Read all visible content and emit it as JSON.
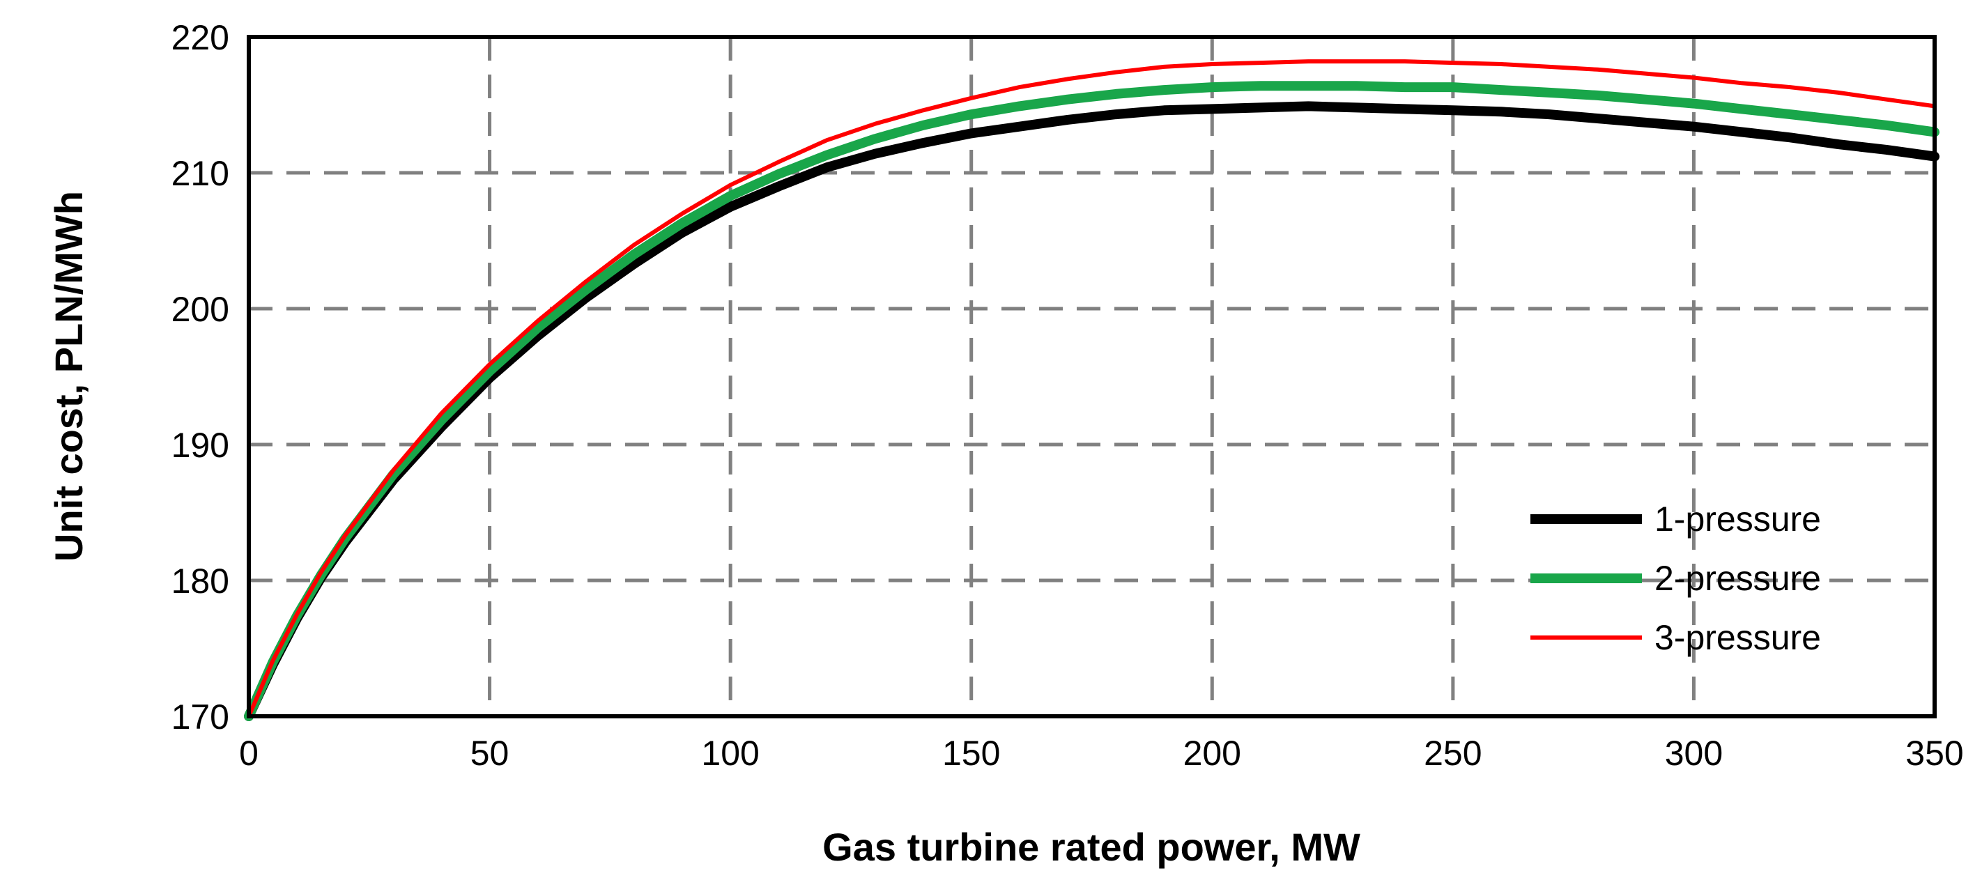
{
  "chart_data": {
    "type": "line",
    "xlabel": "Gas turbine rated power, MW",
    "ylabel": "Unit cost, PLN/MWh",
    "xlim": [
      0,
      350
    ],
    "ylim": [
      170,
      220
    ],
    "x_ticks": [
      "0",
      "50",
      "100",
      "150",
      "200",
      "250",
      "300",
      "350"
    ],
    "y_ticks": [
      "170",
      "180",
      "190",
      "200",
      "210",
      "220"
    ],
    "grid": true,
    "legend_position": "bottom-right",
    "x": [
      0,
      5,
      10,
      15,
      20,
      30,
      40,
      50,
      60,
      70,
      80,
      90,
      100,
      110,
      120,
      130,
      140,
      150,
      160,
      170,
      180,
      190,
      200,
      210,
      220,
      230,
      240,
      250,
      260,
      270,
      280,
      290,
      300,
      310,
      320,
      330,
      340,
      350
    ],
    "series": [
      {
        "name": "1-pressure",
        "color": "#000000",
        "values": [
          170.0,
          173.8,
          177.2,
          180.2,
          182.8,
          187.4,
          191.3,
          194.9,
          198.0,
          200.8,
          203.3,
          205.6,
          207.5,
          209.0,
          210.4,
          211.4,
          212.2,
          212.9,
          213.4,
          213.9,
          214.3,
          214.6,
          214.7,
          214.8,
          214.9,
          214.8,
          214.7,
          214.6,
          214.5,
          214.3,
          214.0,
          213.7,
          213.4,
          213.0,
          212.6,
          212.1,
          211.7,
          211.2
        ]
      },
      {
        "name": "2-pressure",
        "color": "#19a64a",
        "values": [
          170.0,
          174.0,
          177.4,
          180.4,
          183.1,
          187.8,
          191.8,
          195.4,
          198.6,
          201.4,
          204.0,
          206.3,
          208.3,
          209.9,
          211.3,
          212.5,
          213.5,
          214.3,
          214.9,
          215.4,
          215.8,
          216.1,
          216.3,
          216.4,
          216.4,
          216.4,
          216.3,
          216.3,
          216.1,
          215.9,
          215.7,
          215.4,
          215.1,
          214.7,
          214.3,
          213.9,
          213.5,
          213.0
        ]
      },
      {
        "name": "3-pressure",
        "color": "#ff0000",
        "values": [
          170.0,
          174.1,
          177.5,
          180.6,
          183.3,
          188.1,
          192.3,
          195.9,
          199.1,
          202.0,
          204.7,
          207.0,
          209.1,
          210.8,
          212.4,
          213.6,
          214.6,
          215.5,
          216.3,
          216.9,
          217.4,
          217.8,
          218.0,
          218.1,
          218.2,
          218.2,
          218.2,
          218.1,
          218.0,
          217.8,
          217.6,
          217.3,
          217.0,
          216.6,
          216.3,
          215.9,
          215.4,
          214.9
        ]
      }
    ]
  }
}
